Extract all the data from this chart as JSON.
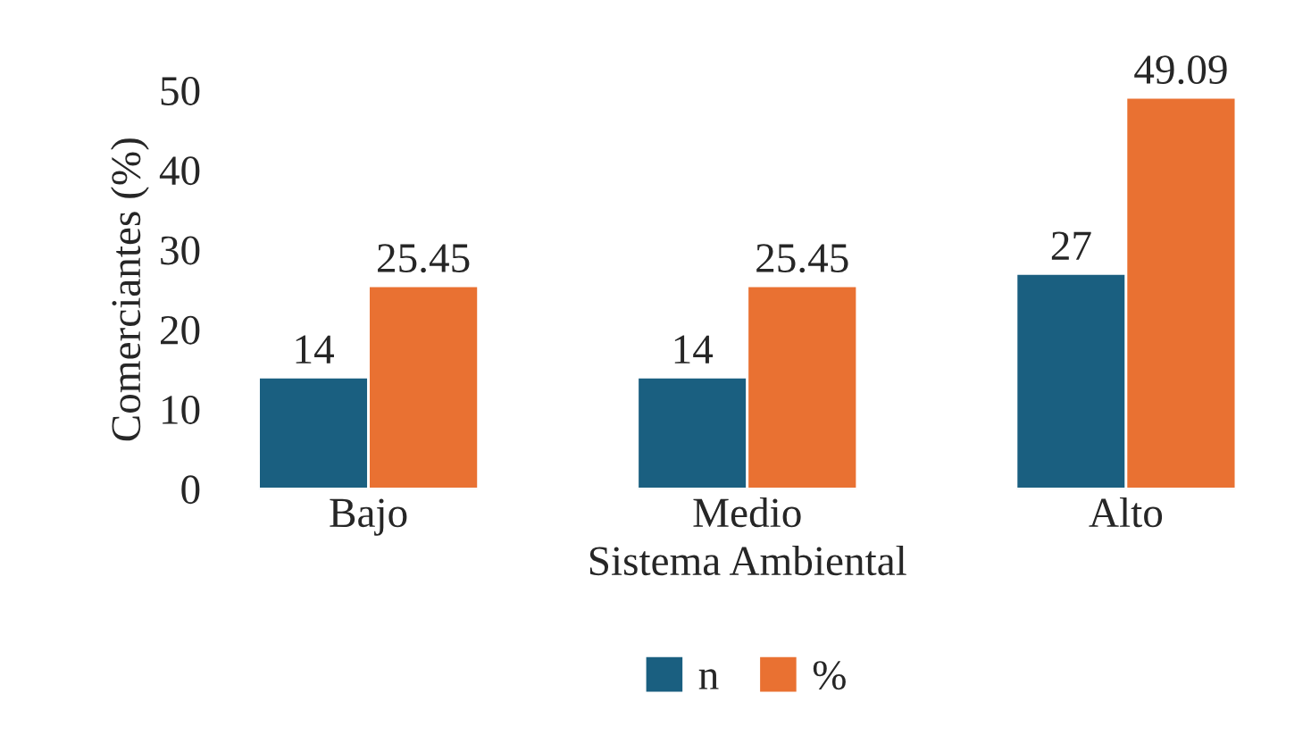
{
  "chart_data": {
    "type": "bar",
    "xlabel": "Sistema Ambiental",
    "ylabel": "Comerciantes (%)",
    "categories": [
      "Bajo",
      "Medio",
      "Alto"
    ],
    "series": [
      {
        "name": "n",
        "color": "#1a5f80",
        "values": [
          14,
          14,
          27
        ]
      },
      {
        "name": "%",
        "color": "#e97132",
        "values": [
          25.45,
          25.45,
          49.09
        ]
      }
    ],
    "ylim": [
      0,
      50
    ],
    "yticks": [
      0,
      10,
      20,
      30,
      40,
      50
    ],
    "data_labels": true,
    "legend": "bottom",
    "grid": false
  }
}
